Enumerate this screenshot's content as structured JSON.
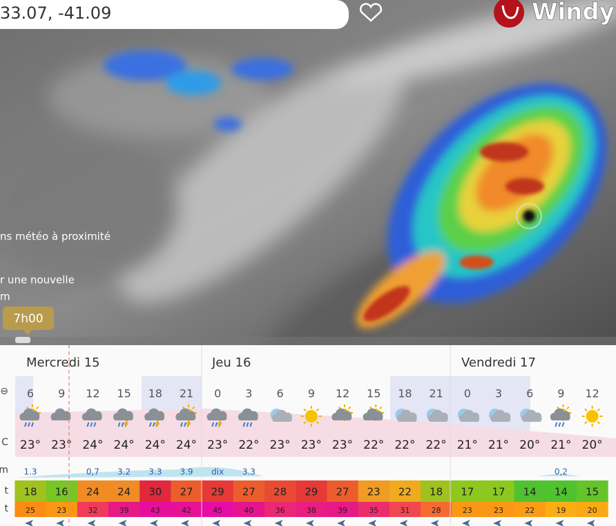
{
  "search": {
    "coords": "33.07, -41.09"
  },
  "logo": "Windy",
  "side_texts": [
    "ns météo à proximité",
    "r une nouvelle",
    "m"
  ],
  "time_tag": "7h00",
  "forecast": {
    "days": [
      "Mercredi 15",
      "Jeu 16",
      "Vendredi 17"
    ],
    "row_labels": [
      "⊖",
      "C",
      "m",
      "t",
      "t"
    ],
    "hours": [
      6,
      9,
      12,
      15,
      18,
      21,
      0,
      3,
      6,
      9,
      12,
      15,
      18,
      21,
      0,
      3,
      6,
      9,
      12
    ],
    "temps": [
      "23°",
      "23°",
      "24°",
      "24°",
      "24°",
      "24°",
      "23°",
      "22°",
      "23°",
      "23°",
      "23°",
      "22°",
      "22°",
      "22°",
      "21°",
      "21°",
      "20°",
      "21°",
      "20°"
    ],
    "rain": [
      "1.3",
      null,
      "0,7",
      "3.2",
      "3.3",
      "3.9",
      "dix",
      "3.3",
      null,
      null,
      null,
      null,
      null,
      null,
      null,
      null,
      null,
      "0,2",
      null
    ],
    "wind": [
      18,
      16,
      24,
      24,
      30,
      27,
      29,
      27,
      28,
      29,
      27,
      23,
      22,
      18,
      17,
      17,
      14,
      14,
      15
    ],
    "gusts": [
      25,
      23,
      32,
      39,
      43,
      42,
      45,
      40,
      36,
      38,
      39,
      35,
      31,
      28,
      23,
      23,
      22,
      19,
      20
    ]
  }
}
